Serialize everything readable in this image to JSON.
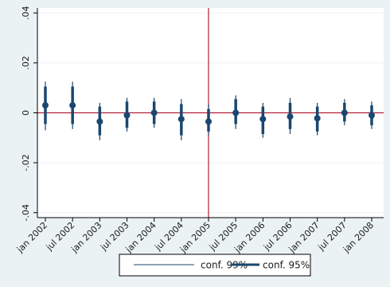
{
  "chart_data": {
    "type": "scatter",
    "x_categories": [
      "jan 2002",
      "jul 2002",
      "jan 2003",
      "jul 2003",
      "jan 2004",
      "jul 2004",
      "jan 2005",
      "jul 2005",
      "jan 2006",
      "jul 2006",
      "jan 2007",
      "jul 2007",
      "jan 2008"
    ],
    "y_ticks": [
      {
        "value": 0.04,
        "label": ".04"
      },
      {
        "value": 0.02,
        "label": ".02"
      },
      {
        "value": 0,
        "label": "0"
      },
      {
        "value": -0.02,
        "label": "-.02"
      },
      {
        "value": -0.04,
        "label": "-.04"
      }
    ],
    "ylim": [
      -0.042,
      0.042
    ],
    "grid": true,
    "reference_lines": {
      "horizontal_y": 0,
      "vertical_x": "jan 2005"
    },
    "series": [
      {
        "name": "conf. 99%",
        "kind": "interval",
        "values": [
          [
            -0.007,
            0.0125
          ],
          [
            -0.0065,
            0.0125
          ],
          [
            -0.011,
            0.004
          ],
          [
            -0.0075,
            0.006
          ],
          [
            -0.006,
            0.006
          ],
          [
            -0.011,
            0.0055
          ],
          [
            -0.009,
            0.0035
          ],
          [
            -0.0065,
            0.007
          ],
          [
            -0.01,
            0.004
          ],
          [
            -0.0085,
            0.006
          ],
          [
            -0.009,
            0.004
          ],
          [
            -0.005,
            0.0055
          ],
          [
            -0.0065,
            0.0045
          ]
        ]
      },
      {
        "name": "conf. 95%",
        "kind": "interval",
        "values": [
          [
            -0.0045,
            0.0105
          ],
          [
            -0.0045,
            0.0105
          ],
          [
            -0.009,
            0.0025
          ],
          [
            -0.006,
            0.0045
          ],
          [
            -0.0045,
            0.0045
          ],
          [
            -0.009,
            0.0035
          ],
          [
            -0.0075,
            0.0015
          ],
          [
            -0.0045,
            0.0055
          ],
          [
            -0.0085,
            0.0025
          ],
          [
            -0.0065,
            0.004
          ],
          [
            -0.0075,
            0.0025
          ],
          [
            -0.0035,
            0.004
          ],
          [
            -0.005,
            0.003
          ]
        ]
      },
      {
        "name": "",
        "kind": "point",
        "values": [
          0.003,
          0.003,
          -0.0035,
          -0.001,
          0,
          -0.0025,
          -0.0035,
          0,
          -0.0025,
          -0.0015,
          -0.0022,
          0,
          -0.001
        ]
      }
    ],
    "legend": {
      "position": "bottom",
      "entries": [
        "conf. 99%",
        "conf. 95%"
      ]
    },
    "colors": {
      "line": "#1a476f",
      "reference": "#b21f3a",
      "grid": "#eaf2f3",
      "plot_bg": "#ffffff",
      "outer_bg": "#eaf2f3"
    }
  }
}
